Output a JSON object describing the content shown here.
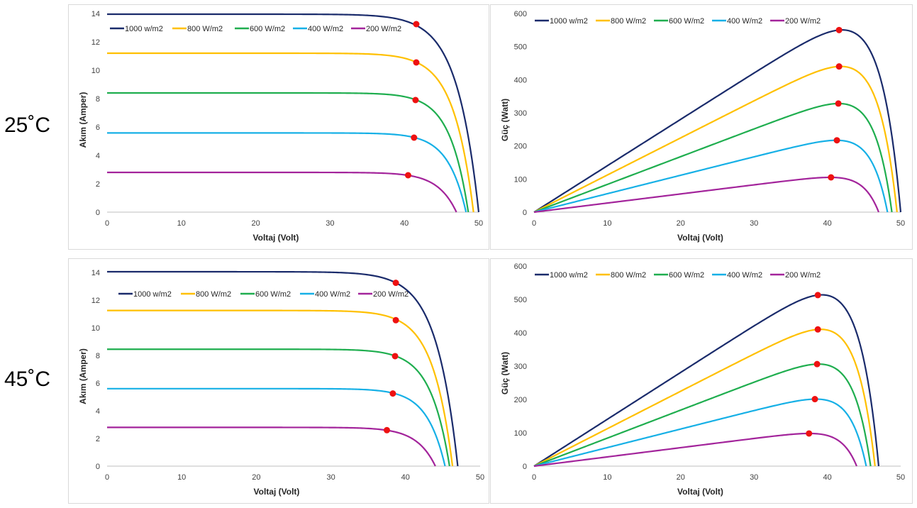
{
  "temperatures": [
    "25˚C",
    "45˚C"
  ],
  "legend": [
    "1000 w/m2",
    "800 W/m2",
    "600 W/m2",
    "400 W/m2",
    "200 W/m2"
  ],
  "series_colors": [
    "#1a2b6b",
    "#ffc000",
    "#1fae4f",
    "#16b0e6",
    "#a3249b"
  ],
  "mpp_color": "#ee1111",
  "chart_data": [
    {
      "id": "iv-25",
      "type": "line",
      "title": "",
      "xlabel": "Voltaj (Volt)",
      "ylabel": "Akım (Amper)",
      "xlim": [
        0,
        50
      ],
      "ylim": [
        0,
        14
      ],
      "xticks": [
        "0",
        "10",
        "20",
        "30",
        "40",
        "50"
      ],
      "yticks": [
        "0",
        "2",
        "4",
        "6",
        "8",
        "10",
        "12",
        "14"
      ],
      "legend_position": "top-left",
      "series": [
        {
          "name": "1000 w/m2",
          "isc": 13.95,
          "voc": 50.0,
          "mpp": [
            41.6,
            13.25
          ]
        },
        {
          "name": "800 W/m2",
          "isc": 11.2,
          "voc": 49.3,
          "mpp": [
            41.6,
            10.55
          ]
        },
        {
          "name": "600 W/m2",
          "isc": 8.4,
          "voc": 48.6,
          "mpp": [
            41.5,
            7.9
          ]
        },
        {
          "name": "400 W/m2",
          "isc": 5.58,
          "voc": 48.3,
          "mpp": [
            41.3,
            5.25
          ]
        },
        {
          "name": "200 W/m2",
          "isc": 2.8,
          "voc": 47.0,
          "mpp": [
            40.5,
            2.6
          ]
        }
      ]
    },
    {
      "id": "pv-25",
      "type": "line",
      "title": "",
      "xlabel": "Voltaj (Volt)",
      "ylabel": "Güç (Watt)",
      "xlim": [
        0,
        50
      ],
      "ylim": [
        0,
        600
      ],
      "xticks": [
        "0",
        "10",
        "20",
        "30",
        "40",
        "50"
      ],
      "yticks": [
        "0",
        "100",
        "200",
        "300",
        "400",
        "500",
        "600"
      ],
      "legend_position": "top-left",
      "series": [
        {
          "name": "1000 w/m2",
          "voc": 50.0,
          "mpp": [
            41.6,
            550
          ]
        },
        {
          "name": "800 W/m2",
          "voc": 49.5,
          "mpp": [
            41.6,
            440
          ]
        },
        {
          "name": "600 W/m2",
          "voc": 48.8,
          "mpp": [
            41.5,
            328
          ]
        },
        {
          "name": "400 W/m2",
          "voc": 48.2,
          "mpp": [
            41.3,
            217
          ]
        },
        {
          "name": "200 W/m2",
          "voc": 47.0,
          "mpp": [
            40.5,
            105
          ]
        }
      ]
    },
    {
      "id": "iv-45",
      "type": "line",
      "title": "",
      "xlabel": "Voltaj (Volt)",
      "ylabel": "Akım (Amper)",
      "xlim": [
        0,
        50
      ],
      "ylim": [
        0,
        14
      ],
      "xticks": [
        "0",
        "10",
        "20",
        "30",
        "40",
        "50"
      ],
      "yticks": [
        "0",
        "2",
        "4",
        "6",
        "8",
        "10",
        "12",
        "14"
      ],
      "legend_position": "top-left",
      "series": [
        {
          "name": "1000 w/m2",
          "isc": 14.05,
          "voc": 47.0,
          "mpp": [
            38.7,
            13.25
          ]
        },
        {
          "name": "800 W/m2",
          "isc": 11.25,
          "voc": 46.3,
          "mpp": [
            38.7,
            10.55
          ]
        },
        {
          "name": "600 W/m2",
          "isc": 8.45,
          "voc": 45.9,
          "mpp": [
            38.6,
            7.95
          ]
        },
        {
          "name": "400 W/m2",
          "isc": 5.6,
          "voc": 45.3,
          "mpp": [
            38.3,
            5.25
          ]
        },
        {
          "name": "200 W/m2",
          "isc": 2.8,
          "voc": 44.0,
          "mpp": [
            37.5,
            2.6
          ]
        }
      ]
    },
    {
      "id": "pv-45",
      "type": "line",
      "title": "",
      "xlabel": "Voltaj (Volt)",
      "ylabel": "Güç (Watt)",
      "xlim": [
        0,
        50
      ],
      "ylim": [
        0,
        600
      ],
      "xticks": [
        "0",
        "10",
        "20",
        "30",
        "40",
        "50"
      ],
      "yticks": [
        "0",
        "100",
        "200",
        "300",
        "400",
        "500",
        "600"
      ],
      "legend_position": "top-left",
      "series": [
        {
          "name": "1000 w/m2",
          "voc": 47.0,
          "mpp": [
            38.7,
            513
          ]
        },
        {
          "name": "800 W/m2",
          "voc": 46.5,
          "mpp": [
            38.7,
            410
          ]
        },
        {
          "name": "600 W/m2",
          "voc": 45.9,
          "mpp": [
            38.6,
            306
          ]
        },
        {
          "name": "400 W/m2",
          "voc": 45.3,
          "mpp": [
            38.3,
            201
          ]
        },
        {
          "name": "200 W/m2",
          "voc": 44.0,
          "mpp": [
            37.5,
            98
          ]
        }
      ]
    }
  ]
}
